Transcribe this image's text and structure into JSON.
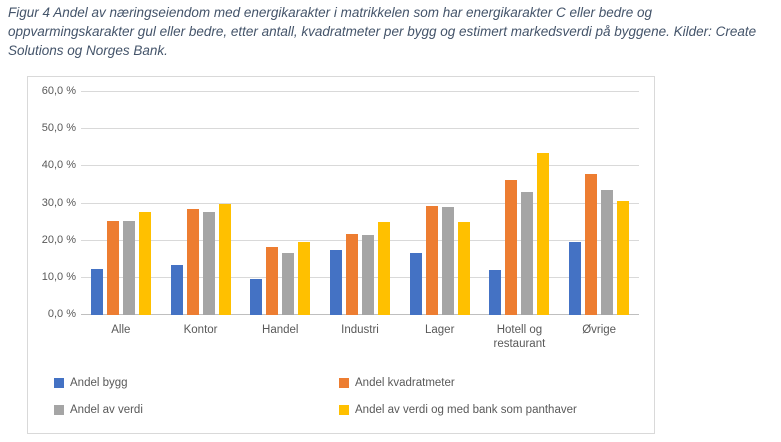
{
  "title": "Figur 4 Andel av næringseiendom med energikarakter i matrikkelen som har energikarakter C eller bedre og oppvarmingskarakter gul eller bedre, etter antall, kvadratmeter per bygg og estimert markedsverdi på byggene. Kilder: Create Solutions og Norges Bank.",
  "colors": {
    "title_text": "#44546A",
    "axis_text": "#595959",
    "gridline": "#D9D9D9",
    "axis_line": "#BFBFBF",
    "frame_border": "#D9D9D9",
    "series_blue": "#4472C4",
    "series_orange": "#ED7D31",
    "series_gray": "#A5A5A5",
    "series_yellow": "#FFC000"
  },
  "chart_data": {
    "type": "bar",
    "title": "",
    "xlabel": "",
    "ylabel": "",
    "ylim": [
      0,
      60
    ],
    "ytick_step": 10,
    "ytick_labels_top_down": [
      "60,0 %",
      "50,0 %",
      "40,0 %",
      "30,0 %",
      "20,0 %",
      "10,0 %",
      "0,0 %"
    ],
    "grid": true,
    "legend_position": "bottom",
    "categories": [
      "Alle",
      "Kontor",
      "Handel",
      "Industri",
      "Lager",
      "Hotell og restaurant",
      "Øvrige"
    ],
    "series": [
      {
        "name": "Andel bygg",
        "color": "#4472C4",
        "values": [
          12.3,
          13.4,
          9.6,
          17.5,
          16.7,
          12.1,
          19.7
        ]
      },
      {
        "name": "Andel kvadratmeter",
        "color": "#ED7D31",
        "values": [
          25.3,
          28.5,
          18.2,
          21.8,
          29.3,
          36.3,
          37.9
        ]
      },
      {
        "name": "Andel av verdi",
        "color": "#A5A5A5",
        "values": [
          25.3,
          27.8,
          16.7,
          21.4,
          29.1,
          33.2,
          33.6
        ]
      },
      {
        "name": "Andel av verdi og med bank som panthaver",
        "color": "#FFC000",
        "values": [
          27.7,
          30.0,
          19.7,
          25.0,
          25.0,
          43.7,
          30.8
        ]
      }
    ]
  }
}
